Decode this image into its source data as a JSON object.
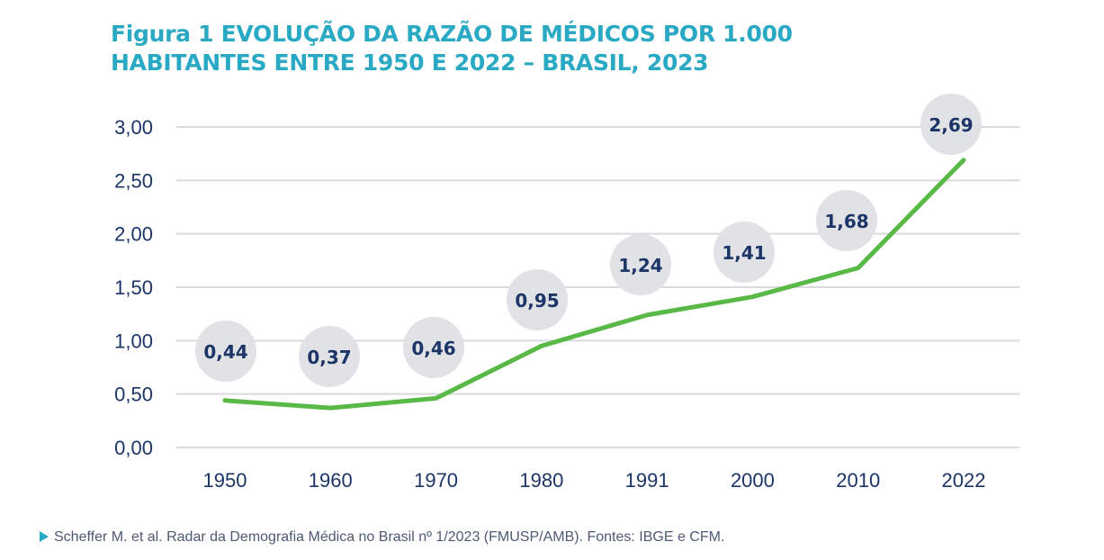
{
  "title": {
    "line1": "Figura 1 EVOLUÇÃO DA RAZÃO DE MÉDICOS POR 1.000",
    "line2": "HABITANTES ENTRE 1950 E 2022 – BRASIL, 2023"
  },
  "source": "Scheffer M. et al. Radar da Demografia Médica no Brasil nº 1/2023 (FMUSP/AMB). Fontes: IBGE e CFM.",
  "colors": {
    "title": "#2aa9c4",
    "axis_text": "#1c3566",
    "line": "#58b947",
    "bubble": "#e1e2e6",
    "bubble_text": "#1c3566",
    "grid": "#d9dadd",
    "source_text": "#4e5a73",
    "source_arrow": "#2aa9c4"
  },
  "chart_data": {
    "type": "line",
    "categories": [
      "1950",
      "1960",
      "1970",
      "1980",
      "1991",
      "2000",
      "2010",
      "2022"
    ],
    "values": [
      0.44,
      0.37,
      0.46,
      0.95,
      1.24,
      1.41,
      1.68,
      2.69
    ],
    "data_labels": [
      "0,44",
      "0,37",
      "0,46",
      "0,95",
      "1,24",
      "1,41",
      "1,68",
      "2,69"
    ],
    "y_ticks": [
      0,
      0.5,
      1.0,
      1.5,
      2.0,
      2.5,
      3.0
    ],
    "y_tick_labels": [
      "0,00",
      "0,50",
      "1,00",
      "1,50",
      "2,00",
      "2,50",
      "3,00"
    ],
    "ylim": [
      0,
      3.0
    ],
    "grid": true,
    "legend": "none"
  }
}
